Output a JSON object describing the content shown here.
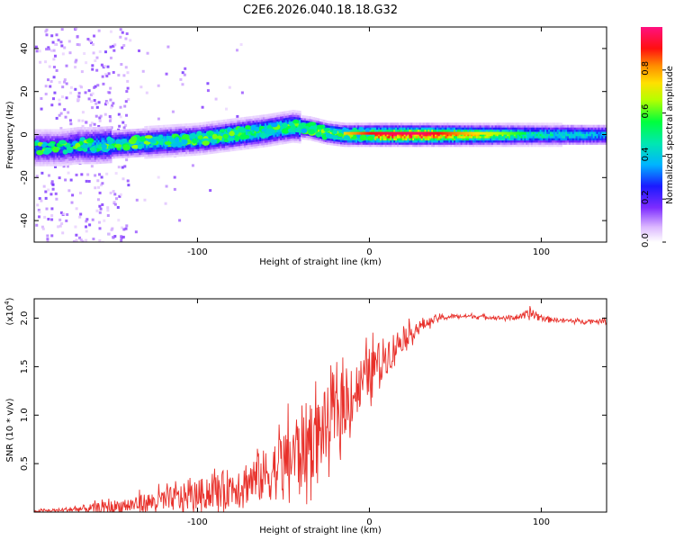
{
  "figure_title": "C2E6.2026.040.18.18.G32",
  "chart_data": [
    {
      "type": "heatmap",
      "title": "C2E6.2026.040.18.18.G32",
      "xlabel": "Height of straight line (km)",
      "ylabel": "Frequency (Hz)",
      "xlim": [
        -195,
        138
      ],
      "ylim": [
        -50,
        50
      ],
      "x_ticks": [
        -100,
        0,
        100
      ],
      "x_tick_labels": [
        "-100",
        "0",
        "100"
      ],
      "y_ticks": [
        -40,
        -20,
        0,
        20,
        40
      ],
      "y_tick_labels": [
        "-40",
        "-20",
        "0",
        "20",
        "40"
      ],
      "colorbar": {
        "label": "Normalized spectral amplitude",
        "range": [
          0,
          1
        ],
        "ticks": [
          0.0,
          0.2,
          0.4,
          0.6,
          0.8
        ],
        "tick_labels": [
          "0.0",
          "0.2",
          "0.4",
          "0.6",
          "0.8"
        ]
      },
      "ridge": {
        "x": [
          -195,
          -180,
          -170,
          -160,
          -140,
          -120,
          -100,
          -80,
          -60,
          -45,
          -35,
          -25,
          -15,
          -5,
          0,
          10,
          30,
          60,
          90,
          100,
          120,
          138
        ],
        "y": [
          -6,
          -6,
          -5,
          -5,
          -4,
          -3,
          -2,
          0,
          2,
          4,
          3,
          1,
          0,
          0,
          0,
          0,
          0,
          0,
          0,
          0,
          0,
          0
        ],
        "amplitude": [
          0.3,
          0.3,
          0.35,
          0.4,
          0.45,
          0.5,
          0.5,
          0.55,
          0.55,
          0.55,
          0.6,
          0.65,
          0.75,
          0.85,
          0.9,
          0.95,
          0.97,
          0.75,
          0.55,
          0.5,
          0.45,
          0.4
        ]
      }
    },
    {
      "type": "line",
      "title": "",
      "xlabel": "Height of straight line (km)",
      "ylabel": "SNR (10 * v/v)",
      "scale_label": "(x10^4)",
      "scale_base": "(x10",
      "scale_exp": "4",
      "ylabel_text": "SNR (10 * v/v)",
      "xlim": [
        -195,
        138
      ],
      "ylim": [
        0,
        2.2
      ],
      "x_ticks": [
        -100,
        0,
        100
      ],
      "x_tick_labels": [
        "-100",
        "0",
        "100"
      ],
      "y_ticks": [
        0.5,
        1.0,
        1.5,
        2.0
      ],
      "y_tick_labels": [
        "0.5",
        "1.0",
        "1.5",
        "2.0"
      ],
      "color": "#e8302a",
      "series": [
        {
          "name": "SNR",
          "x": [
            -195,
            -180,
            -160,
            -140,
            -120,
            -100,
            -80,
            -60,
            -50,
            -40,
            -30,
            -20,
            -10,
            0,
            10,
            20,
            30,
            40,
            50,
            60,
            80,
            90,
            95,
            100,
            110,
            120,
            138
          ],
          "y": [
            0.01,
            0.02,
            0.04,
            0.07,
            0.12,
            0.18,
            0.26,
            0.38,
            0.5,
            0.65,
            0.8,
            1.0,
            1.2,
            1.45,
            1.62,
            1.8,
            1.92,
            2.0,
            2.02,
            2.02,
            2.0,
            2.02,
            2.05,
            2.0,
            1.98,
            1.97,
            1.97
          ],
          "noise_amplitude": [
            0.01,
            0.02,
            0.05,
            0.08,
            0.12,
            0.15,
            0.2,
            0.28,
            0.35,
            0.45,
            0.4,
            0.35,
            0.3,
            0.25,
            0.2,
            0.12,
            0.06,
            0.03,
            0.02,
            0.02,
            0.02,
            0.03,
            0.08,
            0.03,
            0.02,
            0.02,
            0.02
          ]
        }
      ]
    }
  ]
}
